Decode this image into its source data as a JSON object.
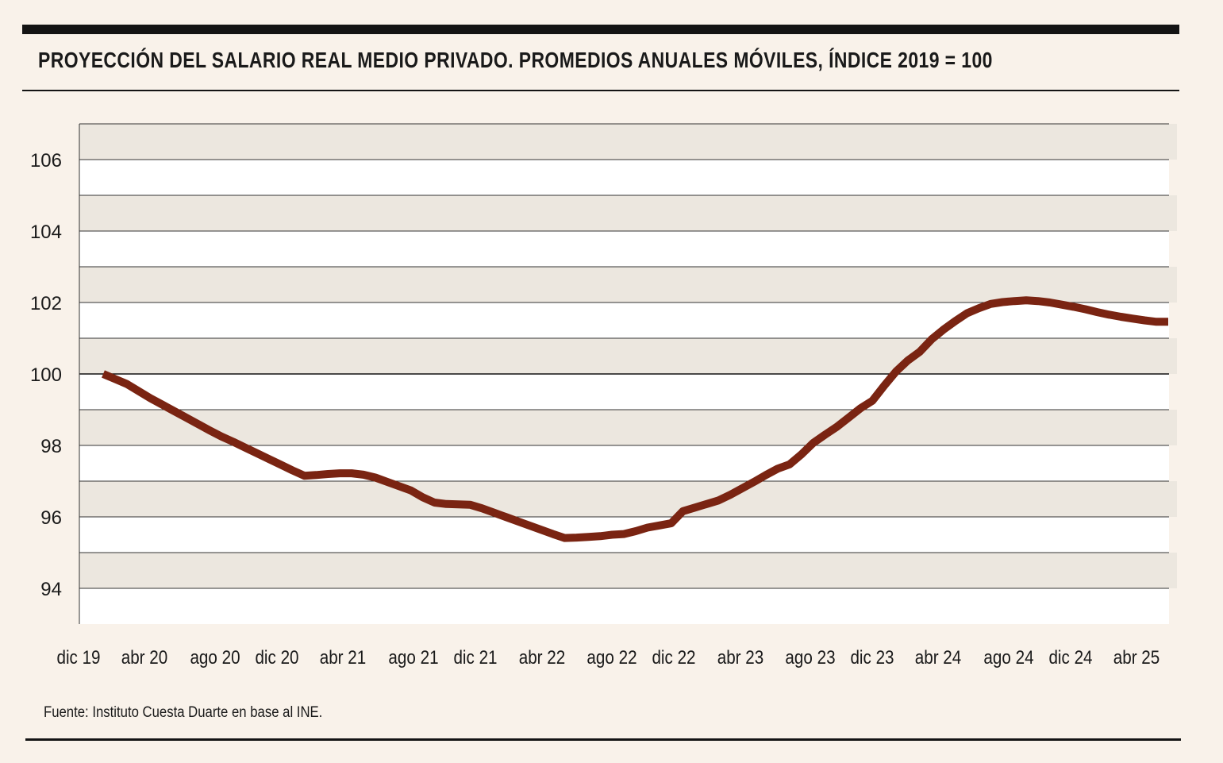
{
  "title": "PROYECCIÓN DEL SALARIO REAL MEDIO PRIVADO. PROMEDIOS ANUALES MÓVILES, ÍNDICE 2019 = 100",
  "source": "Fuente: Instituto Cuesta Duarte en base al INE.",
  "colors": {
    "line": "#7a2412",
    "band": "#ece7df",
    "background": "#f9f2ea"
  },
  "chart_data": {
    "type": "line",
    "title": "PROYECCIÓN DEL SALARIO REAL MEDIO PRIVADO. PROMEDIOS ANUALES MÓVILES, ÍNDICE 2019 = 100",
    "xlabel": "",
    "ylabel": "",
    "ylim": [
      93,
      107
    ],
    "yticks": [
      "94",
      "96",
      "98",
      "100",
      "102",
      "104",
      "106"
    ],
    "xtick_labels": [
      "dic 19",
      "abr 20",
      "ago 20",
      "dic 20",
      "abr 21",
      "ago 21",
      "dic 21",
      "abr 22",
      "ago 22",
      "dic 22",
      "abr 23",
      "ago 23",
      "dic 23",
      "abr 24",
      "ago 24",
      "dic 24",
      "abr 25"
    ],
    "grid": true,
    "reference_line": 100,
    "series": [
      {
        "values": [
          100.0,
          99.86,
          99.72,
          99.52,
          99.32,
          99.14,
          98.96,
          98.78,
          98.6,
          98.42,
          98.25,
          98.1,
          97.94,
          97.78,
          97.62,
          97.46,
          97.3,
          97.15,
          97.17,
          97.2,
          97.22,
          97.22,
          97.18,
          97.1,
          96.98,
          96.86,
          96.74,
          96.55,
          96.4,
          96.36,
          96.35,
          96.34,
          96.24,
          96.12,
          96.0,
          95.88,
          95.76,
          95.64,
          95.52,
          95.41,
          95.42,
          95.44,
          95.46,
          95.5,
          95.52,
          95.6,
          95.7,
          95.76,
          95.82,
          96.16,
          96.26,
          96.36,
          96.46,
          96.62,
          96.8,
          96.98,
          97.17,
          97.35,
          97.47,
          97.75,
          98.07,
          98.3,
          98.52,
          98.78,
          99.04,
          99.25,
          99.67,
          100.07,
          100.38,
          100.62,
          100.97,
          101.24,
          101.48,
          101.7,
          101.84,
          101.96,
          102.01,
          102.04,
          102.06,
          102.04,
          102.0,
          101.94,
          101.88,
          101.81,
          101.73,
          101.66,
          101.6,
          101.55,
          101.5,
          101.46,
          101.46
        ]
      }
    ]
  }
}
